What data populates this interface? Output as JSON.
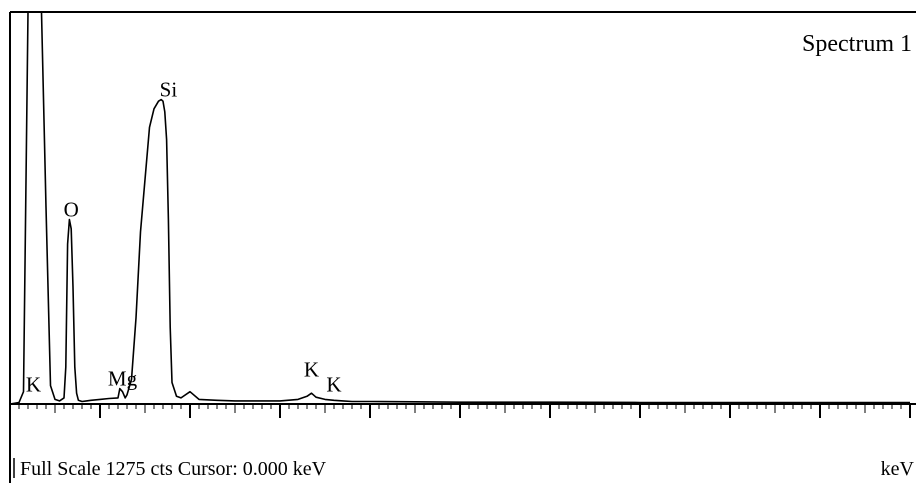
{
  "chart_data": {
    "type": "line",
    "title": "Spectrum 1",
    "xlabel": "keV",
    "ylabel": "",
    "xlim": [
      0,
      10
    ],
    "ylim": [
      0,
      1275
    ],
    "grid": false,
    "legend": "none",
    "status": "Full Scale 1275 cts Cursor: 0.000 keV",
    "series": [
      {
        "x": [
          0.0,
          0.1,
          0.15,
          0.2,
          0.22,
          0.25,
          0.28,
          0.3,
          0.35,
          0.4,
          0.45,
          0.5,
          0.55,
          0.6,
          0.62,
          0.64,
          0.66,
          0.68,
          0.7,
          0.72,
          0.74,
          0.76,
          0.8,
          0.85,
          0.9,
          1.0,
          1.1,
          1.2,
          1.22,
          1.25,
          1.28,
          1.3,
          1.35,
          1.4,
          1.45,
          1.55,
          1.6,
          1.65,
          1.68,
          1.7,
          1.72,
          1.74,
          1.76,
          1.78,
          1.8,
          1.85,
          1.9,
          2.0,
          2.1,
          2.3,
          2.5,
          3.0,
          3.2,
          3.3,
          3.35,
          3.4,
          3.5,
          3.6,
          3.7,
          3.8,
          4.0,
          4.5,
          5.0,
          6.0,
          7.0,
          8.0,
          9.0,
          10.0
        ],
        "values": [
          0,
          5,
          40,
          1275,
          1275,
          1275,
          1275,
          1275,
          1275,
          640,
          60,
          15,
          10,
          20,
          120,
          520,
          600,
          570,
          380,
          120,
          35,
          12,
          8,
          10,
          12,
          15,
          18,
          20,
          50,
          40,
          20,
          30,
          80,
          280,
          560,
          900,
          960,
          985,
          990,
          985,
          950,
          860,
          600,
          250,
          70,
          25,
          20,
          40,
          15,
          12,
          10,
          10,
          15,
          25,
          35,
          22,
          15,
          12,
          10,
          8,
          8,
          7,
          6,
          6,
          5,
          5,
          5,
          5
        ]
      }
    ],
    "peak_labels": [
      {
        "text": "O",
        "x": 0.68,
        "counts": 610
      },
      {
        "text": "Si",
        "x": 1.76,
        "counts": 1000
      },
      {
        "text": "Mg",
        "x": 1.25,
        "counts": 60
      },
      {
        "text": "K",
        "x": 0.26,
        "counts": 40
      },
      {
        "text": "K",
        "x": 3.35,
        "counts": 90
      },
      {
        "text": "K",
        "x": 3.6,
        "counts": 40
      }
    ]
  }
}
